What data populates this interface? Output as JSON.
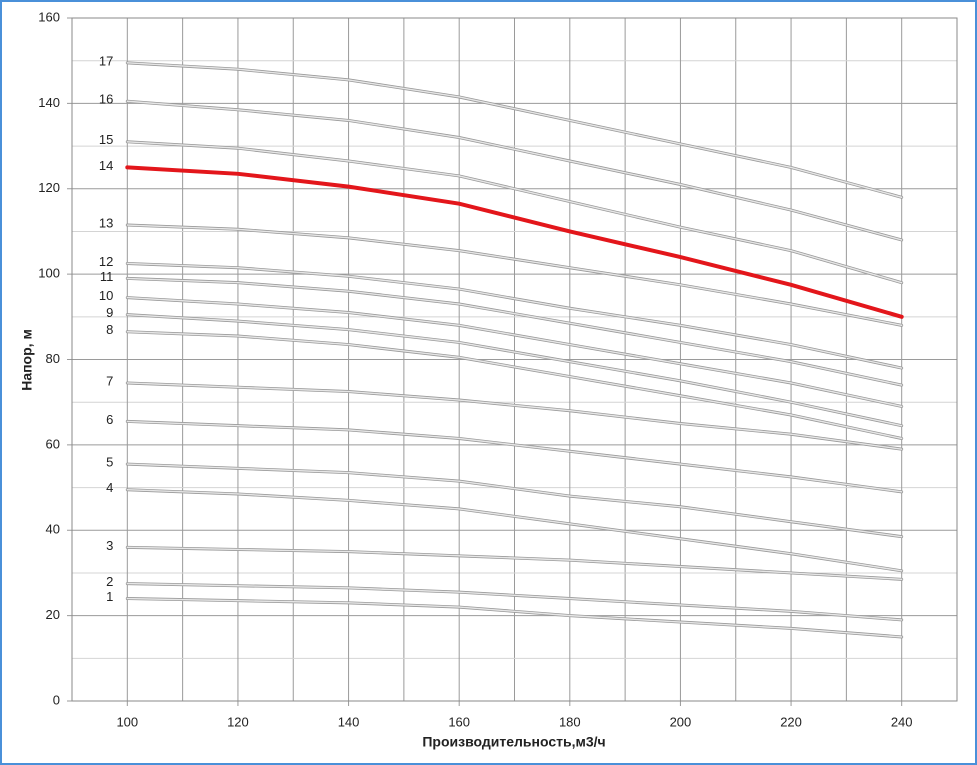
{
  "chart_data": {
    "type": "line",
    "x_label": "Производительность,м3/ч",
    "y_label": "Напор, м",
    "x": [
      100,
      120,
      140,
      160,
      180,
      200,
      220,
      240
    ],
    "xlim": [
      90,
      250
    ],
    "xticks": [
      100,
      120,
      140,
      160,
      180,
      200,
      220,
      240
    ],
    "xminorticks": [
      110,
      130,
      150,
      170,
      190,
      210,
      230
    ],
    "ylim": [
      0,
      160
    ],
    "yticks": [
      0,
      20,
      40,
      60,
      80,
      100,
      120,
      140,
      160
    ],
    "yminorticks": [
      10,
      30,
      50,
      70,
      90,
      110,
      130,
      150
    ],
    "grid": true,
    "series": [
      {
        "name": "1",
        "color": "#9a9a9a",
        "values": [
          24,
          23.5,
          23,
          22,
          20,
          18.5,
          17,
          15
        ]
      },
      {
        "name": "2",
        "color": "#9a9a9a",
        "values": [
          27.5,
          27,
          26.5,
          25.5,
          24,
          22.5,
          21,
          19
        ]
      },
      {
        "name": "3",
        "color": "#9a9a9a",
        "values": [
          36,
          35.5,
          35,
          34,
          33,
          31.5,
          30,
          28.5
        ]
      },
      {
        "name": "4",
        "color": "#9a9a9a",
        "values": [
          49.5,
          48.5,
          47,
          45,
          41.5,
          38,
          34.5,
          30.5
        ]
      },
      {
        "name": "5",
        "color": "#9a9a9a",
        "values": [
          55.5,
          54.5,
          53.5,
          51.5,
          48,
          45.5,
          42,
          38.5
        ]
      },
      {
        "name": "6",
        "color": "#9a9a9a",
        "values": [
          65.5,
          64.5,
          63.5,
          61.5,
          58.5,
          55.5,
          52.5,
          49
        ]
      },
      {
        "name": "7",
        "color": "#9a9a9a",
        "values": [
          74.5,
          73.5,
          72.5,
          70.5,
          68,
          65,
          62.5,
          59
        ]
      },
      {
        "name": "8",
        "color": "#9a9a9a",
        "values": [
          86.5,
          85.5,
          83.5,
          80.5,
          76,
          71.5,
          67,
          61.5
        ]
      },
      {
        "name": "9",
        "color": "#9a9a9a",
        "values": [
          90.5,
          89,
          87,
          84,
          79.5,
          75,
          70,
          64.5
        ]
      },
      {
        "name": "10",
        "color": "#9a9a9a",
        "values": [
          94.5,
          93,
          91,
          88,
          83.5,
          79,
          74.5,
          69
        ]
      },
      {
        "name": "11",
        "color": "#9a9a9a",
        "values": [
          99,
          98,
          96,
          93,
          88.5,
          84,
          79.5,
          74
        ]
      },
      {
        "name": "12",
        "color": "#9a9a9a",
        "values": [
          102.5,
          101.5,
          99.5,
          96.5,
          92,
          88,
          83.5,
          78
        ]
      },
      {
        "name": "13",
        "color": "#9a9a9a",
        "values": [
          111.5,
          110.5,
          108.5,
          105.5,
          101.5,
          97.5,
          93,
          88
        ]
      },
      {
        "name": "14",
        "color": "#e3161b",
        "line_width": 4,
        "values": [
          125,
          123.5,
          120.5,
          116.5,
          110,
          104,
          97.5,
          90
        ]
      },
      {
        "name": "15",
        "color": "#9a9a9a",
        "values": [
          131,
          129.5,
          126.5,
          123,
          117,
          111,
          105.5,
          98
        ]
      },
      {
        "name": "16",
        "color": "#9a9a9a",
        "values": [
          140.5,
          138.5,
          136,
          132,
          126.5,
          121,
          115,
          108
        ]
      },
      {
        "name": "17",
        "color": "#9a9a9a",
        "values": [
          149.5,
          148,
          145.5,
          141.5,
          136,
          130.5,
          125,
          118
        ]
      }
    ]
  }
}
